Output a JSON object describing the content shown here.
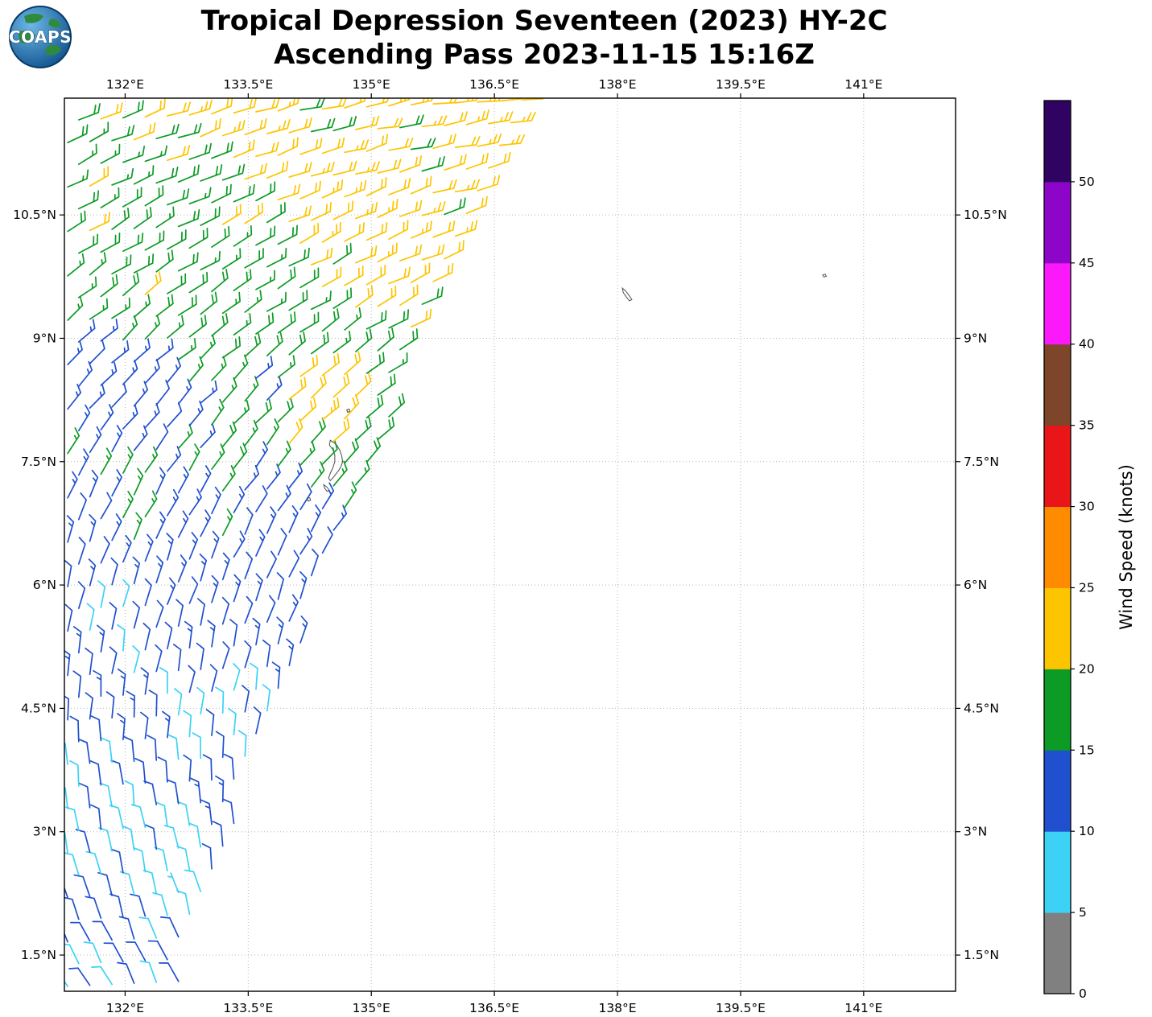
{
  "logo": {
    "text": "COAPS"
  },
  "title": {
    "line1": "Tropical Depression Seventeen (2023) HY-2C",
    "line2": "Ascending Pass 2023-11-15 15:16Z"
  },
  "chart_data": {
    "type": "wind_barb_map",
    "title": "Tropical Depression Seventeen (2023) HY-2C",
    "subtitle": "Ascending Pass 2023-11-15 15:16Z",
    "satellite": "HY-2C",
    "pass": "Ascending",
    "datetime_utc": "2023-11-15 15:16Z",
    "x_axis": {
      "min": 131.26,
      "max": 142.12,
      "ticks": [
        132,
        133.5,
        135,
        136.5,
        138,
        139.5,
        141
      ],
      "tick_labels": [
        "132°E",
        "133.5°E",
        "135°E",
        "136.5°E",
        "138°E",
        "139.5°E",
        "141°E"
      ]
    },
    "y_axis": {
      "min": 1.06,
      "max": 11.92,
      "ticks": [
        1.5,
        3,
        4.5,
        6,
        7.5,
        9,
        10.5
      ],
      "tick_labels": [
        "1.5°N",
        "3°N",
        "4.5°N",
        "6°N",
        "7.5°N",
        "9°N",
        "10.5°N"
      ]
    },
    "grid": {
      "style": "dotted",
      "color": "#b5b5b5"
    },
    "colorbar": {
      "label": "Wind Speed (knots)",
      "units": "knots",
      "levels": [
        0,
        5,
        10,
        15,
        20,
        25,
        30,
        35,
        40,
        45,
        50,
        55
      ],
      "tick_labels": [
        "0",
        "5",
        "10",
        "15",
        "20",
        "25",
        "30",
        "35",
        "40",
        "45",
        "50"
      ],
      "colors": [
        "#808080",
        "#3cd2f5",
        "#2050cf",
        "#0c9b25",
        "#fdc500",
        "#ff8c00",
        "#ea1519",
        "#7d4529",
        "#fb19fb",
        "#8c05c9",
        "#300363"
      ]
    },
    "swath": {
      "lon_start": 131.3,
      "lat_start": 1.12,
      "lat_end": 11.9,
      "spacing": 0.27,
      "row_tilt": 0.045,
      "edge": {
        "a": 132.395,
        "b": 0.3163,
        "c": 0.00594
      },
      "edge_margin": 0.1
    },
    "wind_field": {
      "speed_vs_lat": [
        [
          1.0,
          10.2
        ],
        [
          2.5,
          10.9
        ],
        [
          4.0,
          11.6
        ],
        [
          5.5,
          13.0
        ],
        [
          7.0,
          14.2
        ],
        [
          8.3,
          16.3
        ],
        [
          9.3,
          17.6
        ],
        [
          10.6,
          19.9
        ],
        [
          12.0,
          21.0
        ]
      ],
      "speed_lon_slope": 0.8,
      "speed_lon_ref": 133.0,
      "wave_amp": 1.3,
      "speed_noise": 1.9,
      "dir_vs_lat": [
        [
          1.0,
          333
        ],
        [
          2.5,
          349
        ],
        [
          4.0,
          363
        ],
        [
          5.5,
          375
        ],
        [
          7.0,
          391
        ],
        [
          8.5,
          407
        ],
        [
          9.5,
          416
        ],
        [
          11.0,
          428
        ],
        [
          12.0,
          435
        ]
      ],
      "dir_lon_slope": 2.5,
      "dir_lon_ref": 133.0,
      "dir_noise": 7,
      "speed_min": 6,
      "speed_max": 24.6,
      "bumps": [
        {
          "lon": 134.4,
          "lat": 8.1,
          "amp": 4.5,
          "s2": 0.3
        },
        {
          "lon": 133.2,
          "lat": 7.55,
          "amp": 4.0,
          "s2": 0.22
        },
        {
          "lon": 133.55,
          "lat": 8.3,
          "amp": -3.0,
          "s2": 0.18
        },
        {
          "lon": 132.3,
          "lat": 8.45,
          "amp": -2.6,
          "s2": 0.28
        },
        {
          "lon": 133.8,
          "lat": 6.0,
          "amp": -3.2,
          "s2": 0.5
        },
        {
          "lon": 133.1,
          "lat": 3.9,
          "amp": -2.5,
          "s2": 0.6
        }
      ]
    },
    "islands": [
      {
        "name": "palau-main",
        "coords": [
          [
            134.5,
            7.76
          ],
          [
            134.545,
            7.73
          ],
          [
            134.58,
            7.7
          ],
          [
            134.615,
            7.64
          ],
          [
            134.64,
            7.57
          ],
          [
            134.65,
            7.5
          ],
          [
            134.63,
            7.44
          ],
          [
            134.6,
            7.39
          ],
          [
            134.565,
            7.345
          ],
          [
            134.53,
            7.3
          ],
          [
            134.5,
            7.27
          ],
          [
            134.48,
            7.3
          ],
          [
            134.5,
            7.36
          ],
          [
            134.53,
            7.42
          ],
          [
            134.555,
            7.5
          ],
          [
            134.555,
            7.58
          ],
          [
            134.53,
            7.65
          ],
          [
            134.49,
            7.7
          ]
        ]
      },
      {
        "name": "palau-south",
        "coords": [
          [
            134.42,
            7.22
          ],
          [
            134.46,
            7.19
          ],
          [
            134.49,
            7.15
          ],
          [
            134.46,
            7.14
          ],
          [
            134.43,
            7.18
          ]
        ]
      },
      {
        "name": "palau-islet",
        "coords": [
          [
            134.22,
            7.06
          ],
          [
            134.25,
            7.06
          ],
          [
            134.26,
            7.03
          ],
          [
            134.23,
            7.02
          ]
        ]
      },
      {
        "name": "kayangel",
        "coords": [
          [
            134.7,
            8.13
          ],
          [
            134.73,
            8.14
          ],
          [
            134.74,
            8.11
          ],
          [
            134.71,
            8.1
          ]
        ]
      },
      {
        "name": "yap",
        "coords": [
          [
            138.06,
            9.61
          ],
          [
            138.1,
            9.575
          ],
          [
            138.135,
            9.53
          ],
          [
            138.175,
            9.47
          ],
          [
            138.145,
            9.455
          ],
          [
            138.11,
            9.5
          ],
          [
            138.07,
            9.555
          ]
        ]
      },
      {
        "name": "fais",
        "coords": [
          [
            140.5,
            9.77
          ],
          [
            140.53,
            9.78
          ],
          [
            140.545,
            9.755
          ],
          [
            140.515,
            9.745
          ]
        ]
      }
    ]
  }
}
